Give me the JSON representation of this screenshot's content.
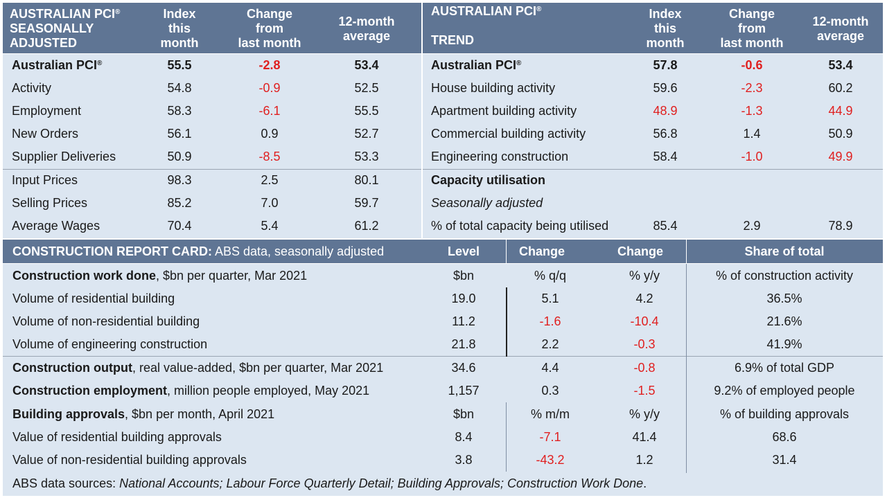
{
  "pci_sa": {
    "title_lines": [
      "AUSTRALIAN PCI",
      "SEASONALLY",
      "ADJUSTED"
    ],
    "reg": "®",
    "col_index": [
      "Index",
      "this",
      "month"
    ],
    "col_change": [
      "Change",
      "from",
      "last month"
    ],
    "col_avg": [
      "12-month",
      "average"
    ],
    "rows": [
      {
        "label": "Australian PCI",
        "sup": "®",
        "bold": true,
        "index": "55.5",
        "change": "-2.8",
        "avg": "53.4"
      },
      {
        "label": "Activity",
        "index": "54.8",
        "change": "-0.9",
        "avg": "52.5"
      },
      {
        "label": "Employment",
        "index": "58.3",
        "change": "-6.1",
        "avg": "55.5"
      },
      {
        "label": "New Orders",
        "index": "56.1",
        "change": "0.9",
        "avg": "52.7"
      },
      {
        "label": "Supplier Deliveries",
        "index": "50.9",
        "change": "-8.5",
        "avg": "53.3"
      },
      {
        "label": "Input Prices",
        "index": "98.3",
        "change": "2.5",
        "avg": "80.1"
      },
      {
        "label": "Selling Prices",
        "index": "85.2",
        "change": "7.0",
        "avg": "59.7"
      },
      {
        "label": "Average Wages",
        "index": "70.4",
        "change": "5.4",
        "avg": "61.2"
      }
    ]
  },
  "pci_trend": {
    "title_line1": "AUSTRALIAN PCI",
    "reg": "®",
    "title_line2": "TREND",
    "col_index": [
      "Index",
      "this",
      "month"
    ],
    "col_change": [
      "Change",
      "from",
      "last month"
    ],
    "col_avg": [
      "12-month",
      "average"
    ],
    "rows": [
      {
        "label": "Australian PCI",
        "sup": "®",
        "bold": true,
        "index": "57.8",
        "change": "-0.6",
        "avg": "53.4"
      },
      {
        "label": "House building activity",
        "index": "59.6",
        "change": "-2.3",
        "avg": "60.2"
      },
      {
        "label": "Apartment building activity",
        "index": "48.9",
        "index_red": true,
        "change": "-1.3",
        "avg": "44.9",
        "avg_red": true
      },
      {
        "label": "Commercial building activity",
        "index": "56.8",
        "change": "1.4",
        "avg": "50.9"
      },
      {
        "label": "Engineering construction",
        "index": "58.4",
        "change": "-1.0",
        "avg": "49.9",
        "avg_red": true
      }
    ],
    "capacity_title": "Capacity utilisation",
    "capacity_sub": "Seasonally adjusted",
    "capacity_row": {
      "label": "% of total capacity being utilised",
      "index": "85.4",
      "change": "2.9",
      "avg": "78.9"
    }
  },
  "report": {
    "title_bold": "CONSTRUCTION REPORT CARD:",
    "title_rest": " ABS data, seasonally adjusted",
    "col_level": "Level",
    "col_change1": "Change",
    "col_change2": "Change",
    "col_share": "Share of total",
    "rows": [
      {
        "bold": "Construction work done",
        "rest": ", $bn per quarter, Mar 2021",
        "level": "$bn",
        "c1": "% q/q",
        "c2": "% y/y",
        "share": "% of construction activity"
      },
      {
        "rest": "Volume of residential building",
        "level": "19.0",
        "c1": "5.1",
        "c2": "4.2",
        "share": "36.5%"
      },
      {
        "rest": "Volume of non-residential building",
        "level": "11.2",
        "c1": "-1.6",
        "c1_red": true,
        "c2": "-10.4",
        "c2_red": true,
        "share": "21.6%"
      },
      {
        "rest": "Volume of engineering construction",
        "level": "21.8",
        "c1": "2.2",
        "c2": "-0.3",
        "c2_red": true,
        "share": "41.9%"
      },
      {
        "bold": "Construction output",
        "rest": ", real value-added, $bn per quarter, Mar 2021",
        "level": "34.6",
        "c1": "4.4",
        "c2": "-0.8",
        "c2_red": true,
        "share": "6.9% of total GDP"
      },
      {
        "bold": "Construction employment",
        "rest": ", million people employed, May 2021",
        "level": "1,157",
        "c1": "0.3",
        "c2": "-1.5",
        "c2_red": true,
        "share": "9.2% of employed people"
      },
      {
        "bold": "Building approvals",
        "rest": ", $bn per month, April 2021",
        "level": "$bn",
        "c1": "% m/m",
        "c2": "% y/y",
        "share": "% of building approvals"
      },
      {
        "rest": "Value of residential building approvals",
        "level": "8.4",
        "c1": "-7.1",
        "c1_red": true,
        "c2": "41.4",
        "share": "68.6"
      },
      {
        "rest": "Value of non-residential building approvals",
        "level": "3.8",
        "c1": "-43.2",
        "c1_red": true,
        "c2": "1.2",
        "share": "31.4"
      }
    ],
    "footer_prefix": "ABS data sources: ",
    "footer_sources": "National Accounts; Labour Force Quarterly Detail; Building Approvals; Construction Work Done",
    "footer_suffix": "."
  },
  "colors": {
    "header": "#5f7594",
    "body": "#dce6f1",
    "negative": "#e02020"
  }
}
